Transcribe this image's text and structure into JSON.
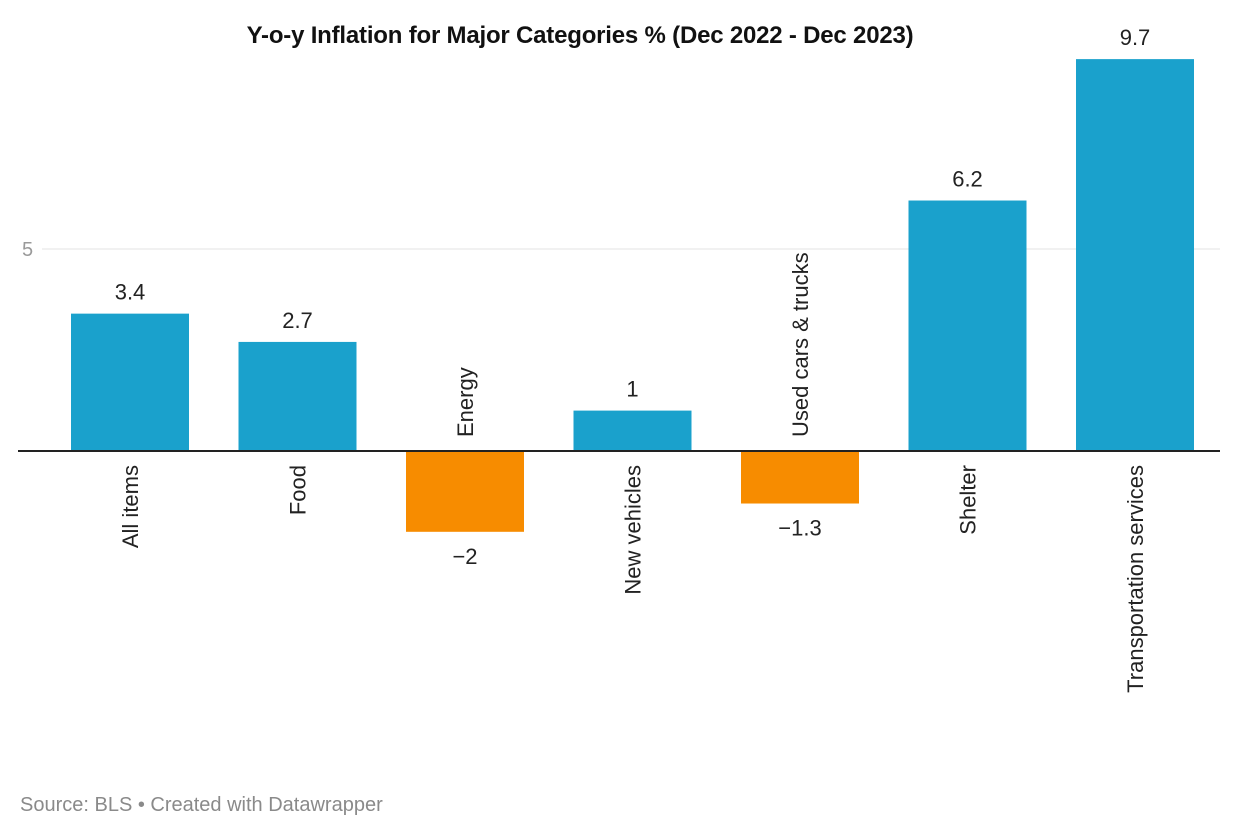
{
  "chart_data": {
    "type": "bar",
    "title": "Y-o-y Inflation for Major Categories % (Dec 2022 - Dec 2023)",
    "categories": [
      "All items",
      "Food",
      "Energy",
      "New vehicles",
      "Used cars & trucks",
      "Shelter",
      "Transportation services"
    ],
    "values": [
      3.4,
      2.7,
      -2,
      1,
      -1.3,
      6.2,
      9.7
    ],
    "value_labels": [
      "3.4",
      "2.7",
      "−2",
      "1",
      "−1.3",
      "6.2",
      "9.7"
    ],
    "xlabel": "",
    "ylabel": "",
    "ylim": [
      -2,
      9.7
    ],
    "yticks": [
      5
    ],
    "ytick_labels": [
      "5"
    ],
    "grid": true,
    "colors": {
      "positive": "#1aa1cc",
      "negative": "#f78c00",
      "baseline": "#222222",
      "grid": "#e3e3e3"
    }
  },
  "footer": {
    "source": "Source: BLS • Created with Datawrapper"
  }
}
